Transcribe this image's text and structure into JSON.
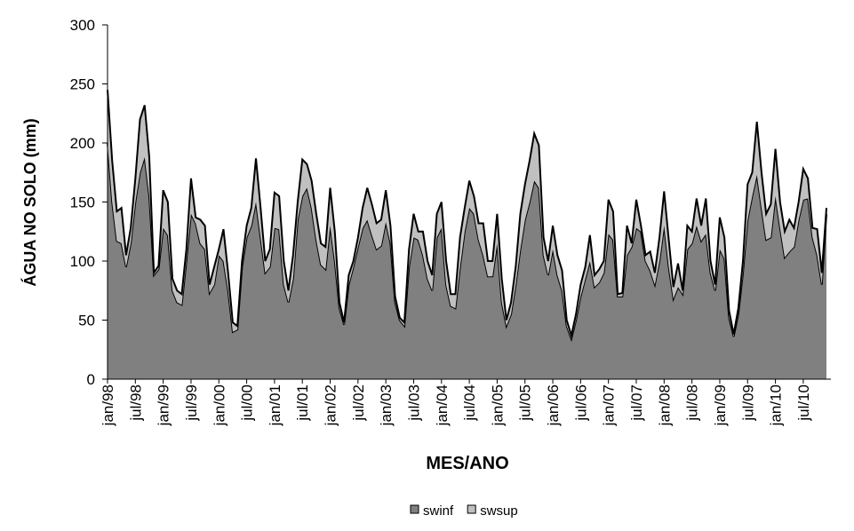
{
  "chart_data": {
    "type": "stacked_area",
    "xlabel": "MES/ANO",
    "ylabel": "ÁGUA NO SOLO (mm)",
    "categories": [
      "jan/98",
      null,
      null,
      null,
      null,
      null,
      "jul/98",
      null,
      null,
      null,
      null,
      null,
      "jan/99",
      null,
      null,
      null,
      null,
      null,
      "jul/99",
      null,
      null,
      null,
      null,
      null,
      "jan/00",
      null,
      null,
      null,
      null,
      null,
      "jul/00",
      null,
      null,
      null,
      null,
      null,
      "jan/01",
      null,
      null,
      null,
      null,
      null,
      "jul/01",
      null,
      null,
      null,
      null,
      null,
      "jan/02",
      null,
      null,
      null,
      null,
      null,
      "jul/02",
      null,
      null,
      null,
      null,
      null,
      "jan/03",
      null,
      null,
      null,
      null,
      null,
      "jul/03",
      null,
      null,
      null,
      null,
      null,
      "jan/04",
      null,
      null,
      null,
      null,
      null,
      "jul/04",
      null,
      null,
      null,
      null,
      null,
      "jan/05",
      null,
      null,
      null,
      null,
      null,
      "jul/05",
      null,
      null,
      null,
      null,
      null,
      "jan/06",
      null,
      null,
      null,
      null,
      null,
      "jul/06",
      null,
      null,
      null,
      null,
      null,
      "jan/07",
      null,
      null,
      null,
      null,
      null,
      "jul/07",
      null,
      null,
      null,
      null,
      null,
      "jan/08",
      null,
      null,
      null,
      null,
      null,
      "jul/08",
      null,
      null,
      null,
      null,
      null,
      "jan/09",
      null,
      null,
      null,
      null,
      null,
      "jul/09",
      null,
      null,
      null,
      null,
      null,
      "jan/10",
      null,
      null,
      null,
      null,
      null,
      "jul/10",
      null,
      null,
      null,
      null,
      null
    ],
    "series": [
      {
        "name": "swinf",
        "color": "#808080",
        "values": [
          200,
          150,
          117,
          115,
          95,
          115,
          150,
          175,
          188,
          155,
          88,
          93,
          128,
          122,
          75,
          65,
          63,
          100,
          140,
          132,
          115,
          110,
          73,
          80,
          105,
          100,
          75,
          40,
          42,
          95,
          120,
          130,
          150,
          120,
          90,
          95,
          128,
          127,
          80,
          65,
          85,
          135,
          155,
          162,
          145,
          118,
          97,
          93,
          130,
          100,
          60,
          46,
          80,
          95,
          112,
          128,
          135,
          122,
          110,
          113,
          133,
          115,
          65,
          50,
          45,
          95,
          120,
          118,
          105,
          85,
          75,
          120,
          128,
          80,
          62,
          60,
          95,
          125,
          145,
          140,
          118,
          105,
          87,
          87,
          115,
          65,
          45,
          55,
          80,
          110,
          135,
          150,
          168,
          162,
          105,
          88,
          110,
          88,
          75,
          45,
          34,
          50,
          70,
          85,
          100,
          78,
          82,
          90,
          123,
          118,
          70,
          70,
          105,
          112,
          128,
          125,
          100,
          92,
          80,
          100,
          130,
          95,
          68,
          78,
          72,
          110,
          115,
          130,
          117,
          123,
          90,
          75,
          110,
          102,
          52,
          36,
          55,
          90,
          135,
          155,
          173,
          145,
          118,
          120,
          155,
          128,
          103,
          108,
          112,
          135,
          152,
          153,
          120,
          105,
          80,
          140
        ]
      },
      {
        "name": "swsup",
        "color": "#c0c0c0",
        "values": [
          45,
          35,
          25,
          30,
          10,
          13,
          20,
          45,
          44,
          33,
          2,
          3,
          32,
          28,
          10,
          10,
          9,
          10,
          30,
          5,
          20,
          20,
          7,
          15,
          5,
          27,
          15,
          8,
          3,
          5,
          10,
          15,
          37,
          25,
          10,
          15,
          30,
          28,
          20,
          10,
          20,
          15,
          31,
          20,
          23,
          22,
          18,
          19,
          32,
          25,
          5,
          2,
          8,
          5,
          8,
          17,
          27,
          26,
          22,
          22,
          27,
          15,
          5,
          2,
          3,
          15,
          20,
          7,
          20,
          15,
          13,
          20,
          22,
          20,
          10,
          12,
          25,
          20,
          23,
          15,
          14,
          27,
          13,
          13,
          25,
          20,
          5,
          10,
          15,
          30,
          30,
          35,
          40,
          36,
          15,
          12,
          20,
          17,
          17,
          5,
          3,
          5,
          10,
          10,
          22,
          10,
          11,
          10,
          29,
          24,
          2,
          3,
          25,
          3,
          24,
          5,
          5,
          16,
          10,
          20,
          29,
          23,
          10,
          20,
          3,
          20,
          10,
          23,
          13,
          30,
          10,
          5,
          27,
          18,
          6,
          2,
          5,
          10,
          30,
          20,
          45,
          30,
          22,
          28,
          40,
          22,
          22,
          27,
          16,
          15,
          26,
          17,
          8,
          22,
          10,
          5
        ]
      }
    ],
    "ylim": [
      0,
      300
    ],
    "yticks": [
      0,
      50,
      100,
      150,
      200,
      250,
      300
    ],
    "grid": false
  }
}
